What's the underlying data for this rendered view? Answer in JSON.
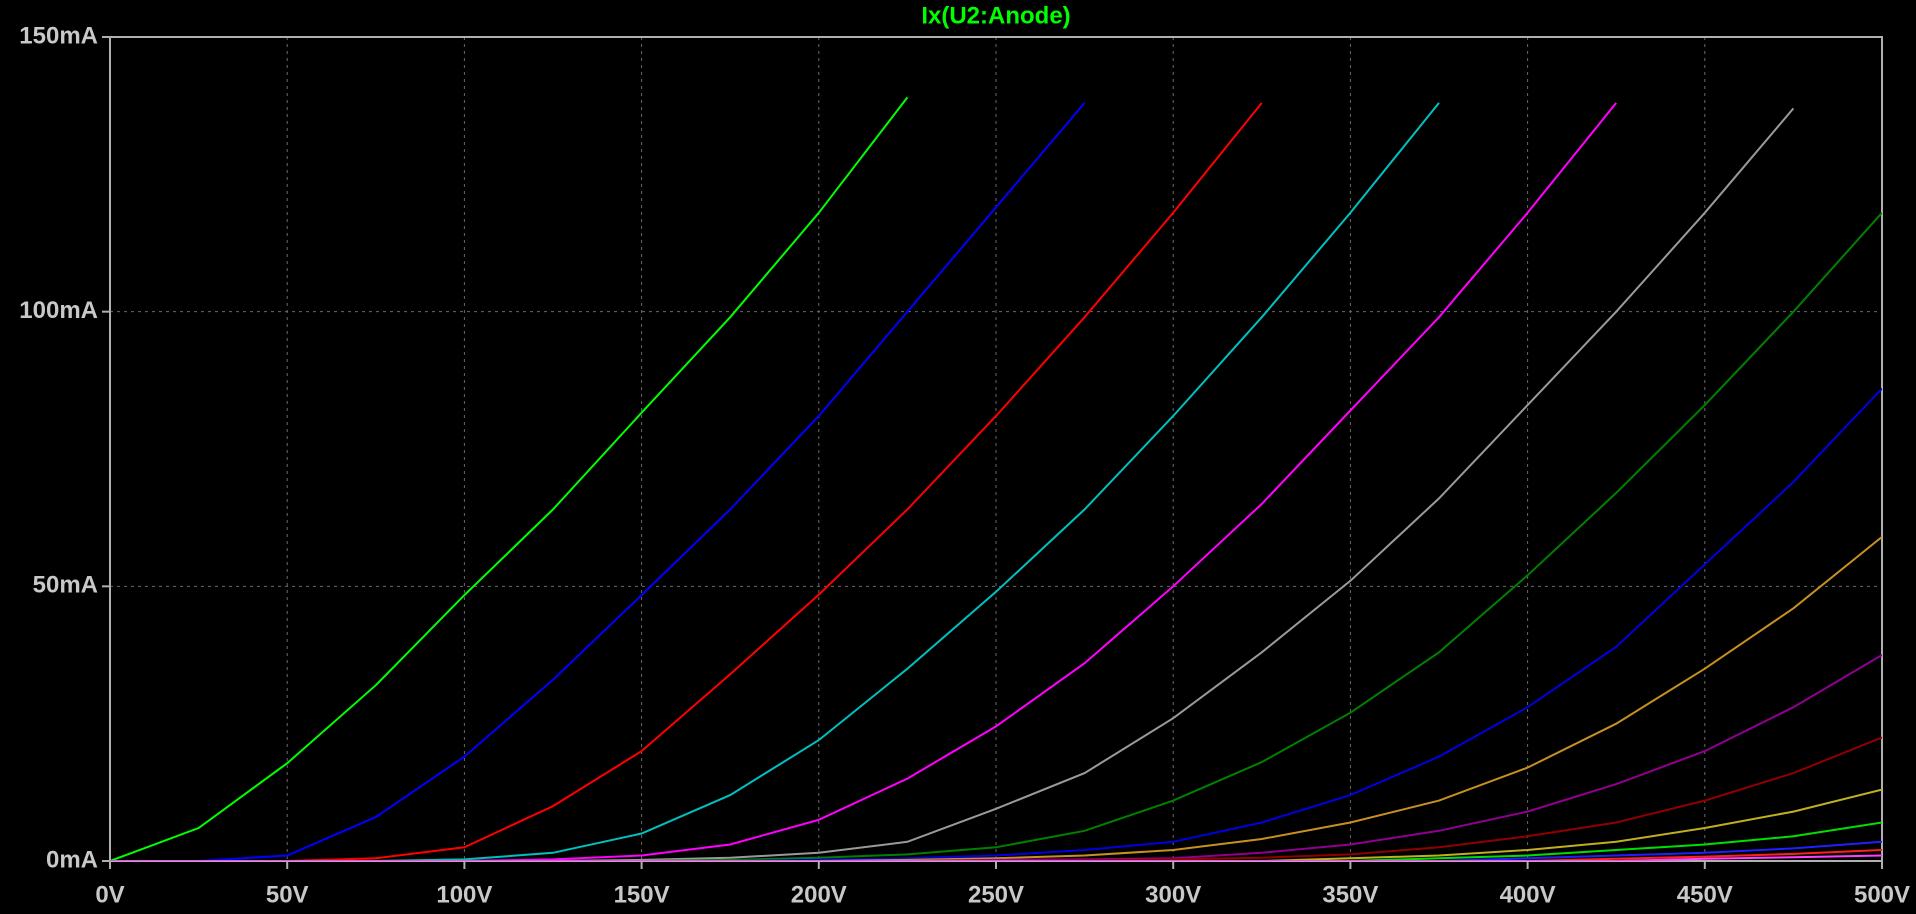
{
  "chart_data": {
    "type": "line",
    "title": "Ix(U2:Anode)",
    "title_color": "#00ff00",
    "grid": true,
    "x": [
      0,
      25,
      50,
      75,
      100,
      125,
      150,
      175,
      200,
      225,
      250,
      275,
      300,
      325,
      350,
      375,
      400,
      425,
      450,
      475,
      500
    ],
    "xlim": [
      0,
      500
    ],
    "xticks": [
      {
        "value": 0,
        "label": "0V"
      },
      {
        "value": 50,
        "label": "50V"
      },
      {
        "value": 100,
        "label": "100V"
      },
      {
        "value": 150,
        "label": "150V"
      },
      {
        "value": 200,
        "label": "200V"
      },
      {
        "value": 250,
        "label": "250V"
      },
      {
        "value": 300,
        "label": "300V"
      },
      {
        "value": 350,
        "label": "350V"
      },
      {
        "value": 400,
        "label": "400V"
      },
      {
        "value": 450,
        "label": "450V"
      },
      {
        "value": 500,
        "label": "500V"
      }
    ],
    "ylim": [
      0,
      150
    ],
    "yticks": [
      {
        "value": 0,
        "label": "0mA"
      },
      {
        "value": 50,
        "label": "50mA"
      },
      {
        "value": 100,
        "label": "100mA"
      },
      {
        "value": 150,
        "label": "150mA"
      }
    ],
    "series": [
      {
        "color": "#00ff00",
        "values": [
          0,
          6,
          17.8,
          32,
          48.4,
          64,
          81.6,
          99,
          118,
          139,
          null,
          null,
          null,
          null,
          null,
          null,
          null,
          null,
          null,
          null,
          null
        ]
      },
      {
        "color": "#0000ff",
        "values": [
          0,
          0,
          1,
          8,
          19,
          33,
          48.4,
          64,
          81,
          100,
          119,
          138,
          null,
          null,
          null,
          null,
          null,
          null,
          null,
          null,
          null
        ]
      },
      {
        "color": "#ff0000",
        "values": [
          0,
          0,
          0,
          0.5,
          2.5,
          10,
          20,
          34,
          48.5,
          64,
          81,
          99,
          118,
          138,
          null,
          null,
          null,
          null,
          null,
          null,
          null
        ]
      },
      {
        "color": "#00c0c0",
        "values": [
          0,
          0,
          0,
          0,
          0.3,
          1.5,
          5,
          12,
          22,
          35,
          49,
          64,
          81,
          99,
          118,
          138,
          null,
          null,
          null,
          null,
          null
        ]
      },
      {
        "color": "#ff00ff",
        "values": [
          0,
          0,
          0,
          0,
          0,
          0.3,
          1,
          3,
          7.5,
          15,
          24.5,
          36,
          50,
          65,
          82,
          99,
          118,
          138,
          null,
          null,
          null
        ]
      },
      {
        "color": "#9a9a9a",
        "values": [
          0,
          0,
          0,
          0,
          0,
          0,
          0.2,
          0.6,
          1.5,
          3.5,
          9.5,
          16,
          26,
          38,
          51,
          66,
          83,
          100,
          118,
          137,
          null
        ]
      },
      {
        "color": "#008000",
        "values": [
          0,
          0,
          0,
          0,
          0,
          0,
          0,
          0.2,
          0.6,
          1.2,
          2.5,
          5.5,
          11,
          18,
          27,
          38,
          52,
          67,
          83,
          100,
          118
        ]
      },
      {
        "color": "#0000e0",
        "values": [
          0,
          0,
          0,
          0,
          0,
          0,
          0,
          0,
          0.2,
          0.5,
          1,
          2,
          3.5,
          7,
          12,
          19,
          28,
          39,
          54,
          69,
          86
        ]
      },
      {
        "color": "#c89020",
        "values": [
          0,
          0,
          0,
          0,
          0,
          0,
          0,
          0,
          0,
          0.2,
          0.5,
          1,
          2,
          4,
          7,
          11,
          17,
          25,
          35,
          46,
          59
        ]
      },
      {
        "color": "#900090",
        "values": [
          0,
          0,
          0,
          0,
          0,
          0,
          0,
          0,
          0,
          0,
          0.2,
          0.3,
          0.5,
          1.5,
          3,
          5.5,
          9,
          14,
          20,
          28,
          37.5
        ]
      },
      {
        "color": "#900000",
        "values": [
          0,
          0,
          0,
          0,
          0,
          0,
          0,
          0,
          0,
          0,
          0,
          0.1,
          0.3,
          0.6,
          1.2,
          2.5,
          4.5,
          7,
          11,
          16,
          22.5
        ]
      },
      {
        "color": "#c0b020",
        "values": [
          0,
          0,
          0,
          0,
          0,
          0,
          0,
          0,
          0,
          0,
          0,
          0,
          0,
          0,
          0.5,
          1,
          2,
          3.5,
          6,
          9,
          13
        ]
      },
      {
        "color": "#00e000",
        "values": [
          0,
          0,
          0,
          0,
          0,
          0,
          0,
          0,
          0,
          0,
          0,
          0,
          0,
          0,
          0,
          0.5,
          1,
          2,
          3,
          4.5,
          7
        ]
      },
      {
        "color": "#2020ff",
        "values": [
          0,
          0,
          0,
          0,
          0,
          0,
          0,
          0,
          0,
          0,
          0,
          0,
          0,
          0,
          0,
          0,
          0.5,
          1,
          1.5,
          2.3,
          3.5
        ]
      },
      {
        "color": "#ff2020",
        "values": [
          0,
          0,
          0,
          0,
          0,
          0,
          0,
          0,
          0,
          0,
          0,
          0,
          0,
          0,
          0,
          0,
          0,
          0.4,
          0.8,
          1.3,
          2
        ]
      },
      {
        "color": "#ff40ff",
        "values": [
          0,
          0,
          0,
          0,
          0,
          0,
          0,
          0,
          0,
          0,
          0,
          0,
          0,
          0,
          0,
          0,
          0,
          0,
          0.4,
          0.7,
          1
        ]
      }
    ]
  }
}
